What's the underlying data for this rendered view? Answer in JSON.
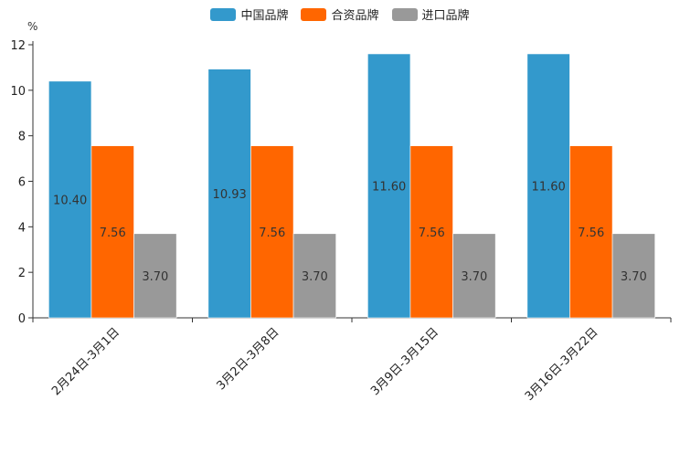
{
  "chart_data": {
    "type": "bar",
    "title": "",
    "ylabel": "%",
    "xlabel": "",
    "ylim": [
      0,
      12
    ],
    "yticks": [
      0,
      2,
      4,
      6,
      8,
      10,
      12
    ],
    "categories": [
      "2月24日-3月1日",
      "3月2日-3月8日",
      "3月9日-3月15日",
      "3月16日-3月22日"
    ],
    "series": [
      {
        "name": "中国品牌",
        "color": "#3399cc",
        "values": [
          10.4,
          10.93,
          11.6,
          11.6
        ],
        "labels": [
          "10.40",
          "10.93",
          "11.60",
          "11.60"
        ]
      },
      {
        "name": "合资品牌",
        "color": "#ff6600",
        "values": [
          7.56,
          7.56,
          7.56,
          7.56
        ],
        "labels": [
          "7.56",
          "7.56",
          "7.56",
          "7.56"
        ]
      },
      {
        "name": "进口品牌",
        "color": "#999999",
        "values": [
          3.7,
          3.7,
          3.7,
          3.7
        ],
        "labels": [
          "3.70",
          "3.70",
          "3.70",
          "3.70"
        ]
      }
    ],
    "legend_position": "top-center"
  }
}
